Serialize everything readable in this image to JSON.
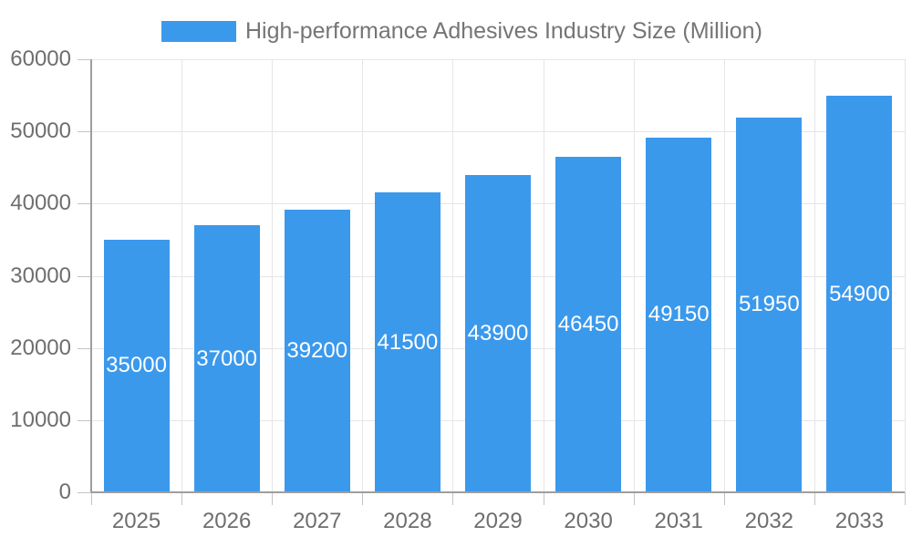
{
  "chart_data": {
    "type": "bar",
    "title": "",
    "legend": {
      "label": "High-performance Adhesives Industry Size (Million)",
      "position": "top"
    },
    "categories": [
      "2025",
      "2026",
      "2027",
      "2028",
      "2029",
      "2030",
      "2031",
      "2032",
      "2033"
    ],
    "series": [
      {
        "name": "High-performance Adhesives Industry Size (Million)",
        "values": [
          35000,
          37000,
          39200,
          41500,
          43900,
          46450,
          49150,
          51950,
          54900
        ]
      }
    ],
    "xlabel": "",
    "ylabel": "",
    "ylim": [
      0,
      60000
    ],
    "ytick_step": 10000,
    "ytick_labels": [
      "0",
      "10000",
      "20000",
      "30000",
      "40000",
      "50000",
      "60000"
    ],
    "grid": {
      "horizontal": true,
      "vertical": true
    },
    "value_labels_inside_bars": true,
    "colors": {
      "bar": "#3B99EC",
      "bar_value_text": "#FFFFFF",
      "legend_text": "#757575",
      "axis_text": "#6E6E6E",
      "gridline": "#E6E6E6",
      "axis_line": "#9E9E9E",
      "tick": "#C4C4C4",
      "background": "#FFFFFF"
    }
  }
}
